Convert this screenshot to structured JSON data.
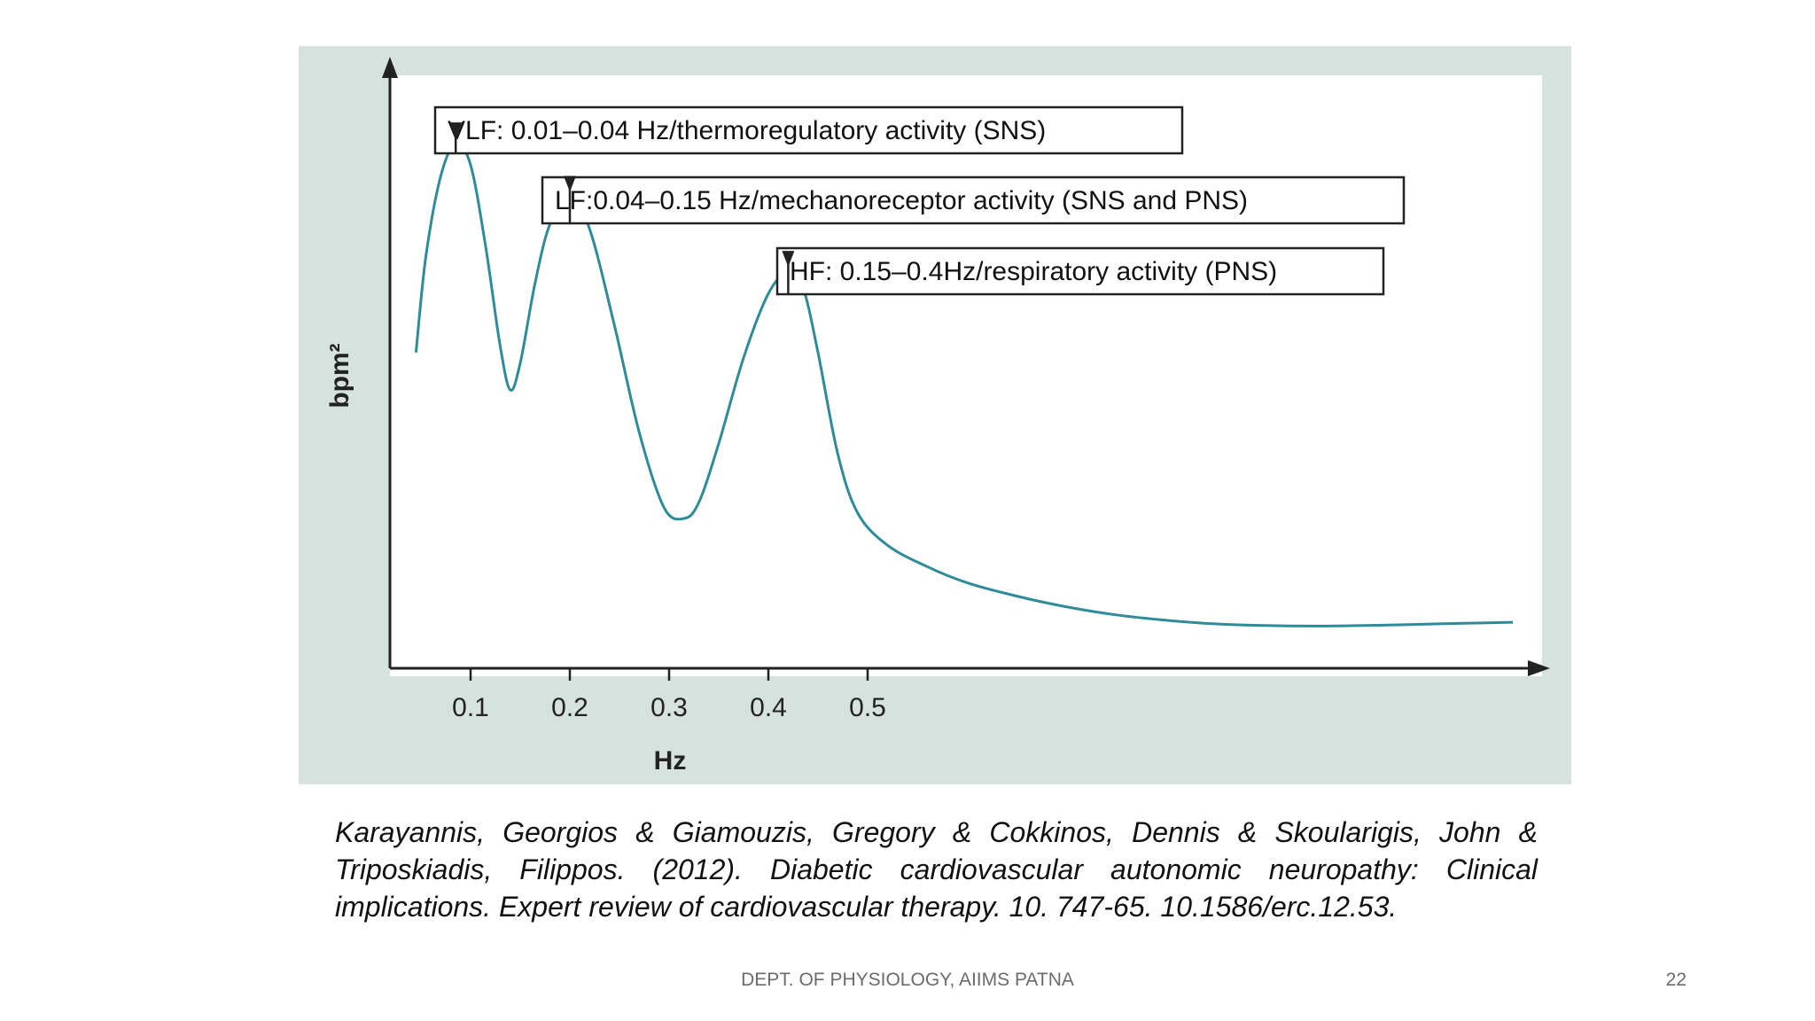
{
  "slide": {
    "citation": "Karayannis, Georgios & Giamouzis, Gregory & Cokkinos, Dennis & Skoularigis, John & Triposkiadis, Filippos. (2012). Diabetic cardiovascular autonomic neuropathy: Clinical implications. Expert review of cardiovascular therapy. 10. 747-65. 10.1586/erc.12.53.",
    "footer": "DEPT. OF PHYSIOLOGY, AIIMS PATNA",
    "page_number": "22"
  },
  "chart_data": {
    "type": "line",
    "title": "",
    "xlabel": "Hz",
    "ylabel": "bpm²",
    "x_ticks": [
      0.1,
      0.2,
      0.3,
      0.4,
      0.5
    ],
    "x_tick_labels": [
      "0.1",
      "0.2",
      "0.3",
      "0.4",
      "0.5"
    ],
    "xlim": [
      0.0,
      1.15
    ],
    "ylim": [
      0,
      1.0
    ],
    "y_ticks_shown": false,
    "grid": false,
    "colors": {
      "line": "#2e8b99",
      "panel": "#d6e2dd",
      "plot_bg": "#ffffff",
      "axis": "#222222"
    },
    "series": [
      {
        "x": [
          0.045,
          0.055,
          0.07,
          0.085,
          0.1,
          0.115,
          0.13,
          0.14,
          0.15,
          0.165,
          0.18,
          0.2,
          0.22,
          0.245,
          0.27,
          0.295,
          0.315,
          0.33,
          0.35,
          0.375,
          0.4,
          0.42,
          0.435,
          0.45,
          0.47,
          0.49,
          0.52,
          0.56,
          0.6,
          0.65,
          0.7,
          0.75,
          0.8,
          0.85,
          0.9,
          0.95,
          1.0,
          1.05,
          1.1,
          1.15
        ],
        "y": [
          0.57,
          0.75,
          0.9,
          0.96,
          0.92,
          0.77,
          0.58,
          0.5,
          0.55,
          0.7,
          0.81,
          0.86,
          0.8,
          0.62,
          0.42,
          0.28,
          0.26,
          0.29,
          0.4,
          0.56,
          0.68,
          0.72,
          0.69,
          0.57,
          0.38,
          0.27,
          0.21,
          0.17,
          0.14,
          0.115,
          0.095,
          0.08,
          0.07,
          0.063,
          0.06,
          0.059,
          0.06,
          0.062,
          0.064,
          0.066
        ]
      }
    ],
    "annotations": [
      {
        "text": "VLF: 0.01–0.04 Hz/thermoregulatory activity (SNS)",
        "x": 0.085,
        "y": 0.96
      },
      {
        "text": "LF:0.04–0.15 Hz/mechanoreceptor activity (SNS and PNS)",
        "x": 0.2,
        "y": 0.86
      },
      {
        "text": "HF: 0.15–0.4Hz/respiratory activity (PNS)",
        "x": 0.42,
        "y": 0.72
      }
    ]
  }
}
